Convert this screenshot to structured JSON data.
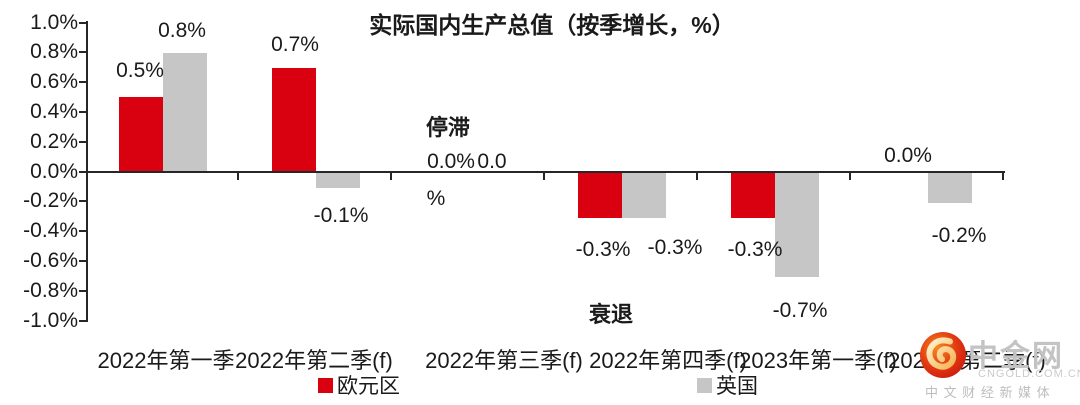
{
  "chart_data": {
    "type": "bar",
    "title": "实际国内生产总值（按季增长，%）",
    "categories": [
      "2022年第一季",
      "2022年第二季(f)",
      "2022年第三季(f)",
      "2022年第四季(f)",
      "2023年第一季(f)",
      "2023年第二季(f)"
    ],
    "series": [
      {
        "name": "欧元区",
        "color": "#d9000f",
        "values": [
          0.5,
          0.7,
          0.0,
          -0.3,
          -0.3,
          0.0
        ]
      },
      {
        "name": "英国",
        "color": "#c6c6c6",
        "values": [
          0.8,
          -0.1,
          0.0,
          -0.3,
          -0.7,
          -0.2
        ]
      }
    ],
    "xlabel": "",
    "ylabel": "",
    "ylim": [
      -1.0,
      1.0
    ],
    "y_tick_step": 0.2,
    "y_tick_labels": [
      "1.0%",
      "0.8%",
      "0.6%",
      "0.4%",
      "0.2%",
      "0.0%",
      "-0.2%",
      "-0.4%",
      "-0.6%",
      "-0.8%",
      "-1.0%"
    ],
    "grid": false,
    "legend_position": "bottom",
    "axis_color": "#262626",
    "text_color": "#1a1a1a",
    "data_labels": [
      {
        "series": "欧元区",
        "text": "0.5%",
        "x": 140,
        "y": 59
      },
      {
        "series": "英国",
        "text": "0.8%",
        "x": 182,
        "y": 19
      },
      {
        "series": "欧元区",
        "text": "0.7%",
        "x": 295,
        "y": 33
      },
      {
        "series": "英国",
        "text": "-0.1%",
        "x": 341,
        "y": 204
      },
      {
        "series": "欧元区",
        "text": "0.0%",
        "x": 451,
        "y": 150
      },
      {
        "series": "英国",
        "text": "0.0",
        "x": 492,
        "y": 150
      },
      {
        "series": "英国",
        "text": "%",
        "x": 436,
        "y": 187
      },
      {
        "series": "欧元区",
        "text": "-0.3%",
        "x": 603,
        "y": 238
      },
      {
        "series": "英国",
        "text": "-0.3%",
        "x": 675,
        "y": 236
      },
      {
        "series": "欧元区",
        "text": "-0.3%",
        "x": 755,
        "y": 238
      },
      {
        "series": "英国",
        "text": "-0.7%",
        "x": 800,
        "y": 299
      },
      {
        "series": "欧元区",
        "text": "0.0%",
        "x": 908,
        "y": 144
      },
      {
        "series": "英国",
        "text": "-0.2%",
        "x": 959,
        "y": 224
      }
    ],
    "annotations": [
      {
        "text": "停滞",
        "x": 448,
        "y": 110
      },
      {
        "text": "衰退",
        "x": 611,
        "y": 297
      }
    ]
  },
  "watermark": {
    "brand": "中金网",
    "domain": "CNGOLD.COM.CN",
    "tagline": "中 文 财 经 新 媒 体"
  }
}
